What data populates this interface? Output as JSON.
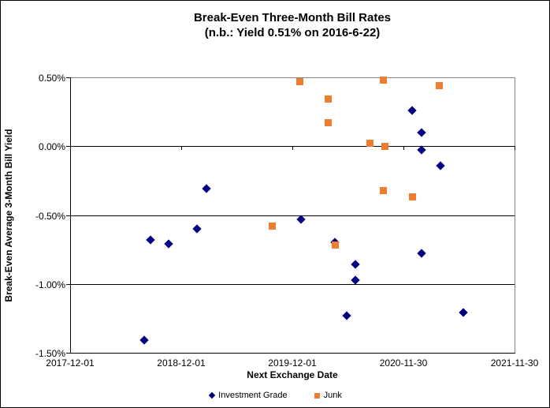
{
  "window": {
    "background": "#FFFFFF",
    "border_color": "#000000",
    "plot_border_color": "#848484",
    "gridline_color": "#000000"
  },
  "chart_data": {
    "type": "scatter",
    "title": "Break-Even Three-Month Bill Rates",
    "subtitle": "(n.b.: Yield 0.51% on 2016-6-22)",
    "xlabel": "Next Exchange Date",
    "ylabel": "Break-Even Average 3-Month Bill Yield",
    "grid": "horizontal",
    "legend_position": "bottom-center",
    "x_axis": {
      "tick_labels": [
        "2017-12-01",
        "2018-12-01",
        "2019-12-01",
        "2020-11-30",
        "2021-11-30"
      ],
      "tick_positions_years": [
        0,
        1,
        2,
        3,
        4
      ],
      "range_years": [
        0,
        4
      ]
    },
    "y_axis": {
      "tick_labels": [
        "0.50%",
        "0.00%",
        "-0.50%",
        "-1.00%",
        "-1.50%"
      ],
      "tick_values": [
        0.5,
        0.0,
        -0.5,
        -1.0,
        -1.5
      ],
      "range": [
        -1.5,
        0.5
      ],
      "zero_line": true
    },
    "series": [
      {
        "name": "Investment Grade",
        "marker": "diamond",
        "color": "#000080",
        "points": [
          {
            "x": 0.67,
            "date": "2018-08",
            "y": -1.41
          },
          {
            "x": 0.72,
            "date": "2018-08",
            "y": -0.68
          },
          {
            "x": 0.89,
            "date": "2018-10",
            "y": -0.71
          },
          {
            "x": 1.14,
            "date": "2019-01",
            "y": -0.6
          },
          {
            "x": 1.23,
            "date": "2019-02",
            "y": -0.31
          },
          {
            "x": 2.08,
            "date": "2019-12",
            "y": -0.53
          },
          {
            "x": 2.38,
            "date": "2020-04",
            "y": -0.7
          },
          {
            "x": 2.49,
            "date": "2020-05",
            "y": -1.23
          },
          {
            "x": 2.57,
            "date": "2020-06",
            "y": -0.86
          },
          {
            "x": 2.57,
            "date": "2020-06",
            "y": -0.97
          },
          {
            "x": 3.08,
            "date": "2020-12",
            "y": 0.26
          },
          {
            "x": 3.16,
            "date": "2021-01",
            "y": 0.1
          },
          {
            "x": 3.16,
            "date": "2021-01",
            "y": -0.03
          },
          {
            "x": 3.16,
            "date": "2021-01",
            "y": -0.78
          },
          {
            "x": 3.33,
            "date": "2021-03",
            "y": -0.14
          },
          {
            "x": 3.54,
            "date": "2021-06",
            "y": -1.21
          }
        ]
      },
      {
        "name": "Junk",
        "marker": "square",
        "color": "#ED7D31",
        "points": [
          {
            "x": 1.82,
            "date": "2019-09",
            "y": -0.58
          },
          {
            "x": 2.07,
            "date": "2019-12",
            "y": 0.47
          },
          {
            "x": 2.32,
            "date": "2020-03",
            "y": 0.34
          },
          {
            "x": 2.32,
            "date": "2020-03",
            "y": 0.17
          },
          {
            "x": 2.39,
            "date": "2020-04",
            "y": -0.72
          },
          {
            "x": 2.7,
            "date": "2020-08",
            "y": 0.02
          },
          {
            "x": 2.82,
            "date": "2020-09",
            "y": 0.48
          },
          {
            "x": 2.82,
            "date": "2020-09",
            "y": -0.32
          },
          {
            "x": 2.83,
            "date": "2020-09",
            "y": 0.0
          },
          {
            "x": 3.08,
            "date": "2020-12",
            "y": -0.37
          },
          {
            "x": 3.32,
            "date": "2021-03",
            "y": 0.44
          }
        ]
      }
    ]
  }
}
